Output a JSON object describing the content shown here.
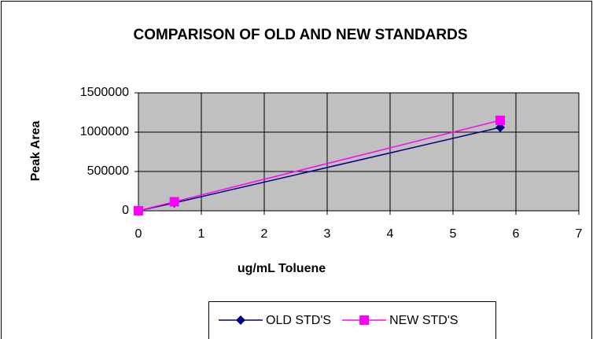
{
  "chart_data": {
    "type": "line",
    "title": "COMPARISON OF OLD AND NEW STANDARDS",
    "x_label": "ug/mL Toluene",
    "y_label": "Peak Area",
    "series": [
      {
        "name": "OLD STD'S",
        "color": "#000080",
        "marker": "diamond",
        "x": [
          0,
          0.57,
          5.75
        ],
        "values": [
          0,
          100000,
          1060000
        ]
      },
      {
        "name": "NEW STD'S",
        "color": "#ff00ff",
        "marker": "square",
        "x": [
          0,
          0.57,
          5.75
        ],
        "values": [
          0,
          115000,
          1150000
        ]
      }
    ],
    "xlim": [
      0,
      7
    ],
    "xticks": [
      0,
      1,
      2,
      3,
      4,
      5,
      6,
      7
    ],
    "ylim": [
      0,
      1500000
    ],
    "yticks": [
      0,
      500000,
      1000000,
      1500000
    ],
    "grid": true,
    "legend": "bottom"
  }
}
